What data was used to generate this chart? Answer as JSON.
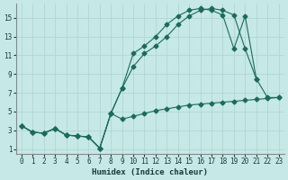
{
  "xlabel": "Humidex (Indice chaleur)",
  "bg_color": "#c6e8e6",
  "grid_color": "#b0d8d5",
  "line_color": "#1a6b5a",
  "xlim": [
    -0.5,
    23.5
  ],
  "ylim": [
    0.5,
    16.5
  ],
  "xticks": [
    0,
    1,
    2,
    3,
    4,
    5,
    6,
    7,
    8,
    9,
    10,
    11,
    12,
    13,
    14,
    15,
    16,
    17,
    18,
    19,
    20,
    21,
    22,
    23
  ],
  "yticks": [
    1,
    3,
    5,
    7,
    9,
    11,
    13,
    15
  ],
  "line1_x": [
    0,
    1,
    2,
    3,
    4,
    5,
    6,
    7,
    8,
    9,
    10,
    11,
    12,
    13,
    14,
    15,
    16,
    17,
    18,
    19,
    20,
    21,
    22,
    23
  ],
  "line1_y": [
    3.5,
    2.8,
    2.7,
    3.2,
    2.5,
    2.4,
    2.3,
    1.1,
    4.8,
    4.2,
    4.5,
    4.8,
    5.1,
    5.3,
    5.5,
    5.7,
    5.8,
    5.9,
    6.0,
    6.1,
    6.2,
    6.3,
    6.4,
    6.5
  ],
  "line2_x": [
    0,
    1,
    2,
    3,
    4,
    5,
    6,
    7,
    8,
    9,
    10,
    11,
    12,
    13,
    14,
    15,
    16,
    17,
    18,
    19,
    20,
    21,
    22,
    23
  ],
  "line2_y": [
    3.5,
    2.8,
    2.7,
    3.2,
    2.5,
    2.4,
    2.3,
    1.1,
    4.8,
    7.5,
    9.8,
    11.2,
    12.0,
    13.0,
    14.3,
    15.2,
    15.8,
    16.0,
    15.8,
    15.3,
    11.7,
    8.5,
    6.5,
    6.5
  ],
  "line3_x": [
    0,
    1,
    2,
    3,
    4,
    5,
    6,
    7,
    8,
    9,
    10,
    11,
    12,
    13,
    14,
    15,
    16,
    17,
    18,
    19,
    20,
    21
  ],
  "line3_y": [
    3.5,
    2.8,
    2.7,
    3.2,
    2.5,
    2.4,
    2.3,
    1.1,
    4.8,
    7.5,
    11.2,
    12.0,
    13.0,
    14.3,
    15.2,
    15.8,
    16.0,
    15.8,
    15.3,
    11.7,
    15.2,
    8.5
  ]
}
